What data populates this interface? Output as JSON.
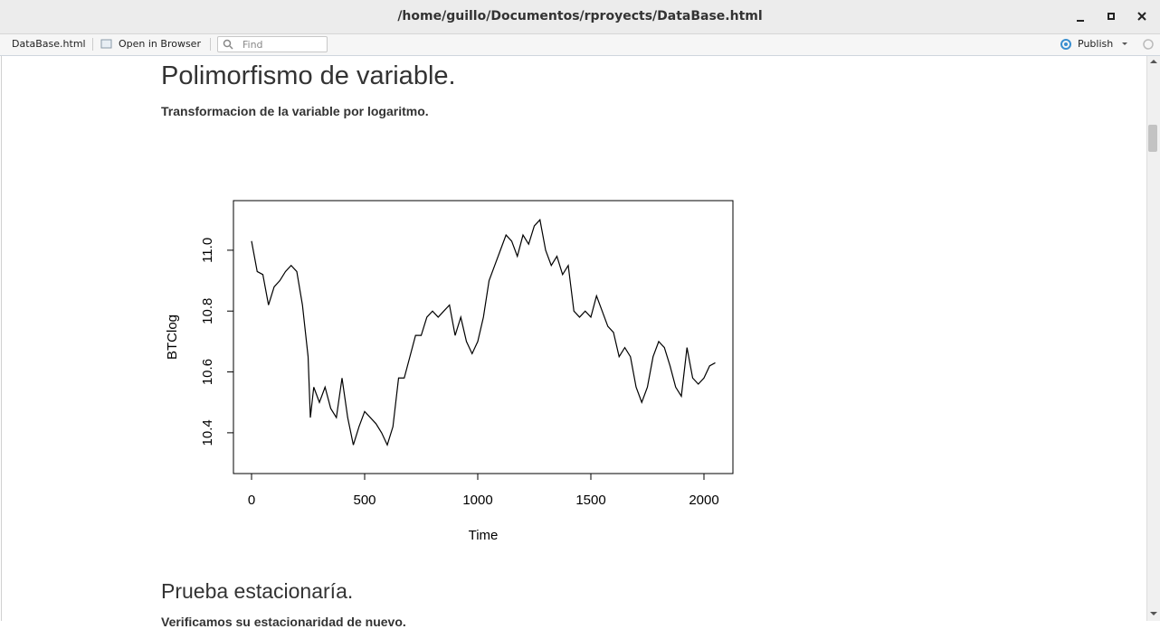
{
  "window": {
    "title": "/home/guillo/Documentos/rproyects/DataBase.html"
  },
  "toolbar": {
    "file": "DataBase.html",
    "open_browser": "Open in Browser",
    "find_placeholder": "Find",
    "publish": "Publish"
  },
  "document": {
    "heading": "Polimorfismo de variable.",
    "subtitle": "Transformacion de la variable por logaritmo.",
    "heading2": "Prueba estacionaría.",
    "paragraph2": "Verificamos su estacionaridad de nuevo."
  },
  "chart_data": {
    "type": "line",
    "x_label": "Time",
    "y_label": "BTClog",
    "color": "#000000",
    "xlim": [
      -80,
      2128
    ],
    "ylim": [
      10.266,
      11.163
    ],
    "xticks": [
      0,
      500,
      1000,
      1500,
      2000
    ],
    "yticks": [
      10.4,
      10.6,
      10.8,
      {
        "value": 11,
        "label": "11.0"
      }
    ],
    "x": [
      0,
      25,
      50,
      75,
      100,
      125,
      150,
      175,
      200,
      225,
      250,
      260,
      275,
      300,
      325,
      350,
      375,
      400,
      425,
      450,
      475,
      500,
      525,
      550,
      575,
      600,
      625,
      650,
      675,
      700,
      725,
      750,
      775,
      800,
      825,
      850,
      875,
      900,
      925,
      950,
      975,
      1000,
      1025,
      1050,
      1075,
      1100,
      1125,
      1150,
      1175,
      1200,
      1225,
      1250,
      1275,
      1300,
      1325,
      1350,
      1375,
      1400,
      1425,
      1450,
      1475,
      1500,
      1525,
      1550,
      1575,
      1600,
      1625,
      1650,
      1675,
      1700,
      1725,
      1750,
      1775,
      1800,
      1825,
      1850,
      1875,
      1900,
      1925,
      1950,
      1975,
      2000,
      2025,
      2050
    ],
    "series": [
      {
        "name": "BTClog",
        "values": [
          11.03,
          10.93,
          10.92,
          10.82,
          10.88,
          10.9,
          10.93,
          10.95,
          10.93,
          10.82,
          10.65,
          10.45,
          10.55,
          10.5,
          10.55,
          10.48,
          10.45,
          10.58,
          10.45,
          10.36,
          10.42,
          10.47,
          10.45,
          10.43,
          10.4,
          10.36,
          10.42,
          10.58,
          10.58,
          10.65,
          10.72,
          10.72,
          10.78,
          10.8,
          10.78,
          10.8,
          10.82,
          10.72,
          10.78,
          10.7,
          10.66,
          10.7,
          10.78,
          10.9,
          10.95,
          11.0,
          11.05,
          11.03,
          10.98,
          11.05,
          11.02,
          11.08,
          11.1,
          11.0,
          10.95,
          10.98,
          10.92,
          10.95,
          10.8,
          10.78,
          10.8,
          10.78,
          10.85,
          10.8,
          10.75,
          10.73,
          10.65,
          10.68,
          10.65,
          10.55,
          10.5,
          10.55,
          10.65,
          10.7,
          10.68,
          10.62,
          10.55,
          10.52,
          10.68,
          10.58,
          10.56,
          10.58,
          10.62,
          10.63
        ]
      }
    ]
  }
}
